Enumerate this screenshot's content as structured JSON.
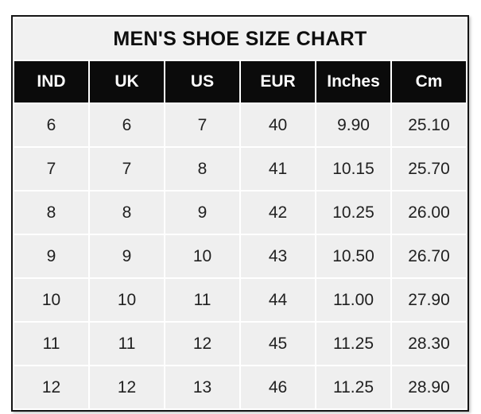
{
  "chart_data": {
    "type": "table",
    "title": "MEN'S SHOE SIZE CHART",
    "columns": [
      "IND",
      "UK",
      "US",
      "EUR",
      "Inches",
      "Cm"
    ],
    "rows": [
      [
        "6",
        "6",
        "7",
        "40",
        "9.90",
        "25.10"
      ],
      [
        "7",
        "7",
        "8",
        "41",
        "10.15",
        "25.70"
      ],
      [
        "8",
        "8",
        "9",
        "42",
        "10.25",
        "26.00"
      ],
      [
        "9",
        "9",
        "10",
        "43",
        "10.50",
        "26.70"
      ],
      [
        "10",
        "10",
        "11",
        "44",
        "11.00",
        "27.90"
      ],
      [
        "11",
        "11",
        "12",
        "45",
        "11.25",
        "28.30"
      ],
      [
        "12",
        "12",
        "13",
        "46",
        "11.25",
        "28.90"
      ]
    ]
  },
  "colors": {
    "outer_border": "#141414",
    "title_band_bg": "#f1f1f1",
    "header_bg": "#0b0b0b",
    "header_text": "#fcfcfc",
    "cell_bg": "#efefef",
    "cell_text": "#212121",
    "gridline": "#ffffff",
    "page_bg": "#ffffff"
  }
}
